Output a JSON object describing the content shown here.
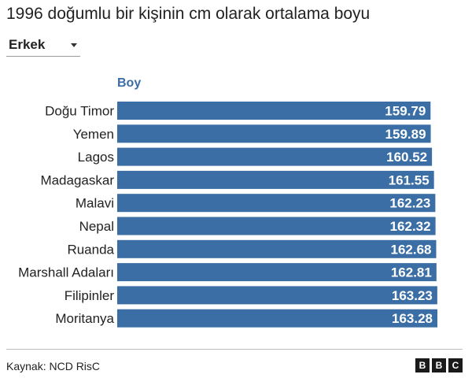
{
  "header": {
    "title": "1996 doğumlu bir kişinin cm olarak ortalama boyu"
  },
  "filter": {
    "selected": "Erkek"
  },
  "chart_data": {
    "type": "bar",
    "orientation": "horizontal",
    "series_label": "Boy",
    "categories": [
      "Doğu Timor",
      "Yemen",
      "Lagos",
      "Madagaskar",
      "Malavi",
      "Nepal",
      "Ruanda",
      "Marshall Adaları",
      "Filipinler",
      "Moritanya"
    ],
    "values": [
      159.79,
      159.89,
      160.52,
      161.55,
      162.23,
      162.32,
      162.68,
      162.81,
      163.23,
      163.28
    ],
    "data_labels": [
      "159.79",
      "159.89",
      "160.52",
      "161.55",
      "162.23",
      "162.32",
      "162.68",
      "162.81",
      "163.23",
      "163.28"
    ],
    "bar_color": "#3a6ea5",
    "label_color": "#ffffff",
    "series_label_color": "#3a6ea5",
    "xlim": [
      0,
      163.28
    ],
    "grid": false,
    "legend": "none"
  },
  "footer": {
    "source": "Kaynak: NCD RisC",
    "logo_letters": [
      "B",
      "B",
      "C"
    ]
  }
}
